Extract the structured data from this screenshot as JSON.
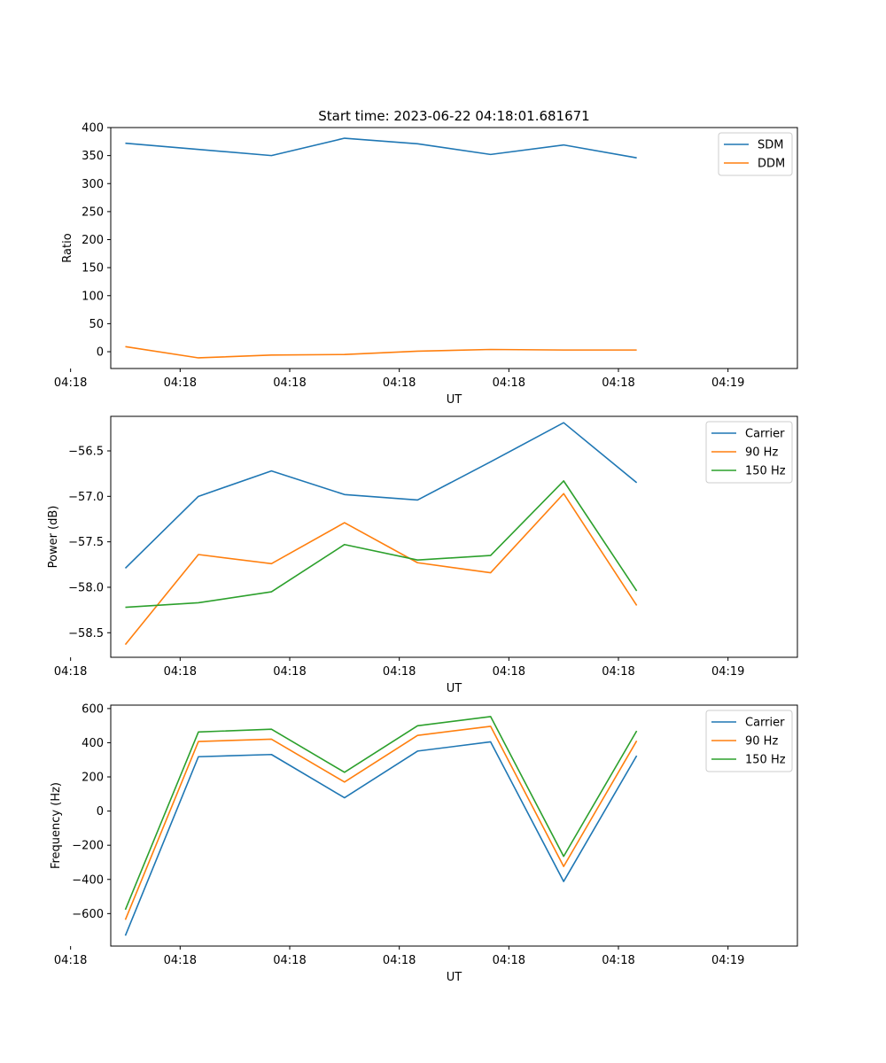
{
  "figure": {
    "title": "Start time: 2023-06-22 04:18:01.681671"
  },
  "chart_data": [
    {
      "type": "line",
      "xlabel": "UT",
      "ylabel": "Ratio",
      "x_tick_labels": [
        "04:18",
        "04:18",
        "04:18",
        "04:18",
        "04:18",
        "04:18",
        "04:19"
      ],
      "x": [
        1,
        2,
        3,
        4,
        5,
        6,
        7,
        8
      ],
      "xlim": [
        0.8,
        10.2
      ],
      "ylim": [
        -30,
        400
      ],
      "y_ticks": [
        0,
        50,
        100,
        150,
        200,
        250,
        300,
        350,
        400
      ],
      "y_tick_labels": [
        "0",
        "50",
        "100",
        "150",
        "200",
        "250",
        "300",
        "350",
        "400"
      ],
      "legend": "top-right",
      "grid": false,
      "series": [
        {
          "name": "SDM",
          "color": "#1f77b4",
          "values": [
            372,
            361,
            350,
            381,
            371,
            352,
            369,
            346
          ]
        },
        {
          "name": "DDM",
          "color": "#ff7f0e",
          "values": [
            9,
            -11,
            -6,
            -5,
            1,
            4,
            3,
            3
          ]
        }
      ]
    },
    {
      "type": "line",
      "xlabel": "UT",
      "ylabel": "Power (dB)",
      "x_tick_labels": [
        "04:18",
        "04:18",
        "04:18",
        "04:18",
        "04:18",
        "04:18",
        "04:19"
      ],
      "x": [
        1,
        2,
        3,
        4,
        5,
        6,
        7,
        8
      ],
      "xlim": [
        0.8,
        10.2
      ],
      "ylim": [
        -58.77,
        -56.12
      ],
      "y_ticks": [
        -56.5,
        -57.0,
        -57.5,
        -58.0,
        -58.5
      ],
      "y_tick_labels": [
        "−56.5",
        "−57.0",
        "−57.5",
        "−58.0",
        "−58.5"
      ],
      "legend": "top-right",
      "grid": false,
      "series": [
        {
          "name": "Carrier",
          "color": "#1f77b4",
          "values": [
            -57.79,
            -57.0,
            -56.72,
            -56.98,
            -57.04,
            -56.62,
            -56.19,
            -56.85
          ]
        },
        {
          "name": "90 Hz",
          "color": "#ff7f0e",
          "values": [
            -58.63,
            -57.64,
            -57.74,
            -57.29,
            -57.73,
            -57.84,
            -56.97,
            -58.2
          ]
        },
        {
          "name": "150 Hz",
          "color": "#2ca02c",
          "values": [
            -58.22,
            -58.17,
            -58.05,
            -57.53,
            -57.7,
            -57.65,
            -56.83,
            -58.04
          ]
        }
      ]
    },
    {
      "type": "line",
      "xlabel": "UT",
      "ylabel": "Frequency (Hz)",
      "x_tick_labels": [
        "04:18",
        "04:18",
        "04:18",
        "04:18",
        "04:18",
        "04:18",
        "04:19"
      ],
      "x": [
        1,
        2,
        3,
        4,
        5,
        6,
        7,
        8
      ],
      "xlim": [
        0.8,
        10.2
      ],
      "ylim": [
        -790,
        620
      ],
      "y_ticks": [
        600,
        400,
        200,
        0,
        -200,
        -400,
        -600
      ],
      "y_tick_labels": [
        "600",
        "400",
        "200",
        "0",
        "−200",
        "−400",
        "−600"
      ],
      "legend": "top-right",
      "grid": false,
      "series": [
        {
          "name": "Carrier",
          "color": "#1f77b4",
          "values": [
            -729,
            318,
            331,
            78,
            351,
            405,
            -412,
            324
          ]
        },
        {
          "name": "90 Hz",
          "color": "#ff7f0e",
          "values": [
            -636,
            407,
            421,
            170,
            443,
            496,
            -324,
            411
          ]
        },
        {
          "name": "150 Hz",
          "color": "#2ca02c",
          "values": [
            -577,
            463,
            479,
            227,
            499,
            553,
            -265,
            469
          ]
        }
      ]
    }
  ]
}
